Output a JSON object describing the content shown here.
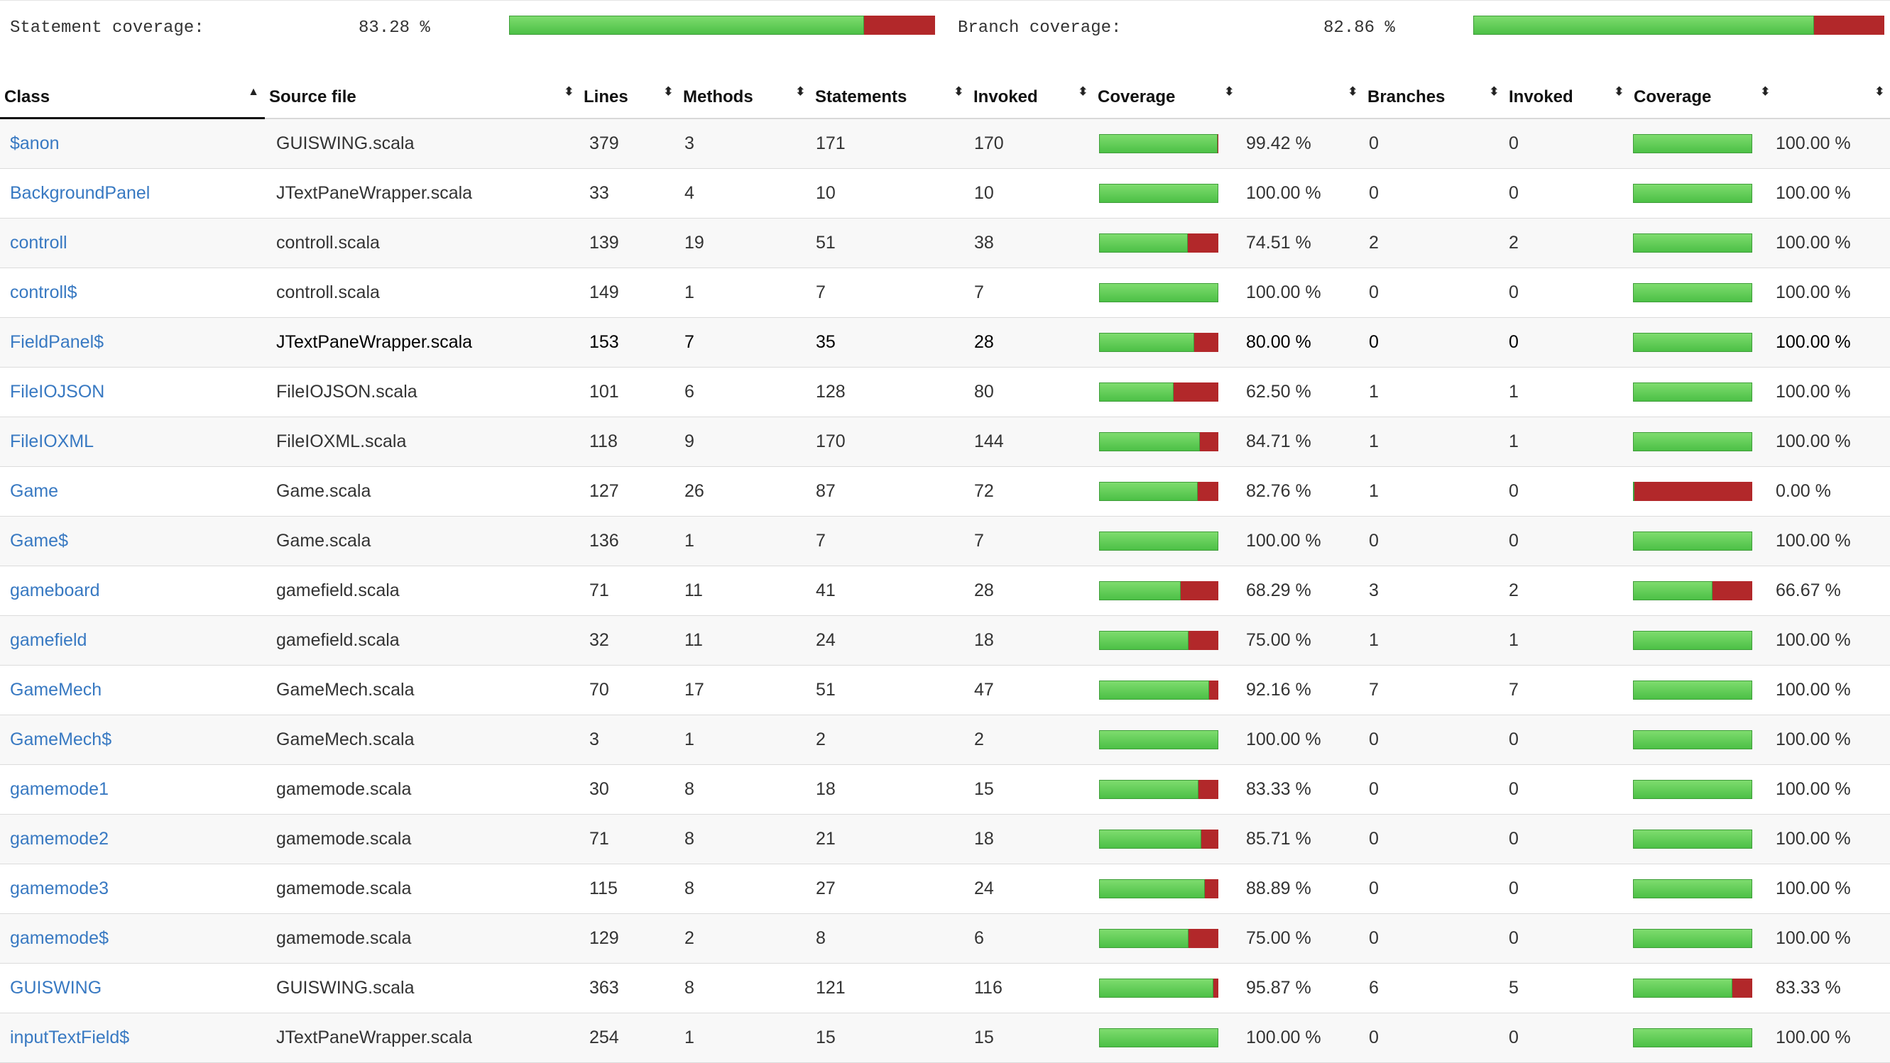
{
  "summary": {
    "statement_label": "Statement coverage:",
    "statement_pct": "83.28 %",
    "statement_value": 83.28,
    "branch_label": "Branch coverage:",
    "branch_pct": "82.86 %",
    "branch_value": 82.86
  },
  "columns": [
    "Class",
    "Source file",
    "Lines",
    "Methods",
    "Statements",
    "Invoked",
    "Coverage",
    "",
    "Branches",
    "Invoked",
    "Coverage",
    ""
  ],
  "sort_icons": {
    "sorted_asc": "▲",
    "unsorted": "⬍"
  },
  "colors": {
    "link": "#3879c2",
    "bar_green": "#5ccb4f",
    "bar_red": "#b2282a"
  },
  "rows": [
    {
      "cls": "$anon",
      "src": "GUISWING.scala",
      "lines": "379",
      "methods": "3",
      "stmts": "171",
      "inv": "170",
      "cov": "99.42 %",
      "cov_v": 99.42,
      "br": "0",
      "brinv": "0",
      "brcov": "100.00 %",
      "brcov_v": 100
    },
    {
      "cls": "BackgroundPanel",
      "src": "JTextPaneWrapper.scala",
      "lines": "33",
      "methods": "4",
      "stmts": "10",
      "inv": "10",
      "cov": "100.00 %",
      "cov_v": 100,
      "br": "0",
      "brinv": "0",
      "brcov": "100.00 %",
      "brcov_v": 100
    },
    {
      "cls": "controll",
      "src": "controll.scala",
      "lines": "139",
      "methods": "19",
      "stmts": "51",
      "inv": "38",
      "cov": "74.51 %",
      "cov_v": 74.51,
      "br": "2",
      "brinv": "2",
      "brcov": "100.00 %",
      "brcov_v": 100
    },
    {
      "cls": "controll$",
      "src": "controll.scala",
      "lines": "149",
      "methods": "1",
      "stmts": "7",
      "inv": "7",
      "cov": "100.00 %",
      "cov_v": 100,
      "br": "0",
      "brinv": "0",
      "brcov": "100.00 %",
      "brcov_v": 100
    },
    {
      "cls": "FieldPanel$",
      "src": "JTextPaneWrapper.scala",
      "lines": "153",
      "methods": "7",
      "stmts": "35",
      "inv": "28",
      "cov": "80.00 %",
      "cov_v": 80,
      "br": "0",
      "brinv": "0",
      "brcov": "100.00 %",
      "brcov_v": 100
    },
    {
      "cls": "FileIOJSON",
      "src": "FileIOJSON.scala",
      "lines": "101",
      "methods": "6",
      "stmts": "128",
      "inv": "80",
      "cov": "62.50 %",
      "cov_v": 62.5,
      "br": "1",
      "brinv": "1",
      "brcov": "100.00 %",
      "brcov_v": 100
    },
    {
      "cls": "FileIOXML",
      "src": "FileIOXML.scala",
      "lines": "118",
      "methods": "9",
      "stmts": "170",
      "inv": "144",
      "cov": "84.71 %",
      "cov_v": 84.71,
      "br": "1",
      "brinv": "1",
      "brcov": "100.00 %",
      "brcov_v": 100
    },
    {
      "cls": "Game",
      "src": "Game.scala",
      "lines": "127",
      "methods": "26",
      "stmts": "87",
      "inv": "72",
      "cov": "82.76 %",
      "cov_v": 82.76,
      "br": "1",
      "brinv": "0",
      "brcov": "0.00 %",
      "brcov_v": 0
    },
    {
      "cls": "Game$",
      "src": "Game.scala",
      "lines": "136",
      "methods": "1",
      "stmts": "7",
      "inv": "7",
      "cov": "100.00 %",
      "cov_v": 100,
      "br": "0",
      "brinv": "0",
      "brcov": "100.00 %",
      "brcov_v": 100
    },
    {
      "cls": "gameboard",
      "src": "gamefield.scala",
      "lines": "71",
      "methods": "11",
      "stmts": "41",
      "inv": "28",
      "cov": "68.29 %",
      "cov_v": 68.29,
      "br": "3",
      "brinv": "2",
      "brcov": "66.67 %",
      "brcov_v": 66.67
    },
    {
      "cls": "gamefield",
      "src": "gamefield.scala",
      "lines": "32",
      "methods": "11",
      "stmts": "24",
      "inv": "18",
      "cov": "75.00 %",
      "cov_v": 75,
      "br": "1",
      "brinv": "1",
      "brcov": "100.00 %",
      "brcov_v": 100
    },
    {
      "cls": "GameMech",
      "src": "GameMech.scala",
      "lines": "70",
      "methods": "17",
      "stmts": "51",
      "inv": "47",
      "cov": "92.16 %",
      "cov_v": 92.16,
      "br": "7",
      "brinv": "7",
      "brcov": "100.00 %",
      "brcov_v": 100
    },
    {
      "cls": "GameMech$",
      "src": "GameMech.scala",
      "lines": "3",
      "methods": "1",
      "stmts": "2",
      "inv": "2",
      "cov": "100.00 %",
      "cov_v": 100,
      "br": "0",
      "brinv": "0",
      "brcov": "100.00 %",
      "brcov_v": 100
    },
    {
      "cls": "gamemode1",
      "src": "gamemode.scala",
      "lines": "30",
      "methods": "8",
      "stmts": "18",
      "inv": "15",
      "cov": "83.33 %",
      "cov_v": 83.33,
      "br": "0",
      "brinv": "0",
      "brcov": "100.00 %",
      "brcov_v": 100
    },
    {
      "cls": "gamemode2",
      "src": "gamemode.scala",
      "lines": "71",
      "methods": "8",
      "stmts": "21",
      "inv": "18",
      "cov": "85.71 %",
      "cov_v": 85.71,
      "br": "0",
      "brinv": "0",
      "brcov": "100.00 %",
      "brcov_v": 100
    },
    {
      "cls": "gamemode3",
      "src": "gamemode.scala",
      "lines": "115",
      "methods": "8",
      "stmts": "27",
      "inv": "24",
      "cov": "88.89 %",
      "cov_v": 88.89,
      "br": "0",
      "brinv": "0",
      "brcov": "100.00 %",
      "brcov_v": 100
    },
    {
      "cls": "gamemode$",
      "src": "gamemode.scala",
      "lines": "129",
      "methods": "2",
      "stmts": "8",
      "inv": "6",
      "cov": "75.00 %",
      "cov_v": 75,
      "br": "0",
      "brinv": "0",
      "brcov": "100.00 %",
      "brcov_v": 100
    },
    {
      "cls": "GUISWING",
      "src": "GUISWING.scala",
      "lines": "363",
      "methods": "8",
      "stmts": "121",
      "inv": "116",
      "cov": "95.87 %",
      "cov_v": 95.87,
      "br": "6",
      "brinv": "5",
      "brcov": "83.33 %",
      "brcov_v": 83.33
    },
    {
      "cls": "inputTextField$",
      "src": "JTextPaneWrapper.scala",
      "lines": "254",
      "methods": "1",
      "stmts": "15",
      "inv": "15",
      "cov": "100.00 %",
      "cov_v": 100,
      "br": "0",
      "brinv": "0",
      "brcov": "100.00 %",
      "brcov_v": 100
    }
  ]
}
